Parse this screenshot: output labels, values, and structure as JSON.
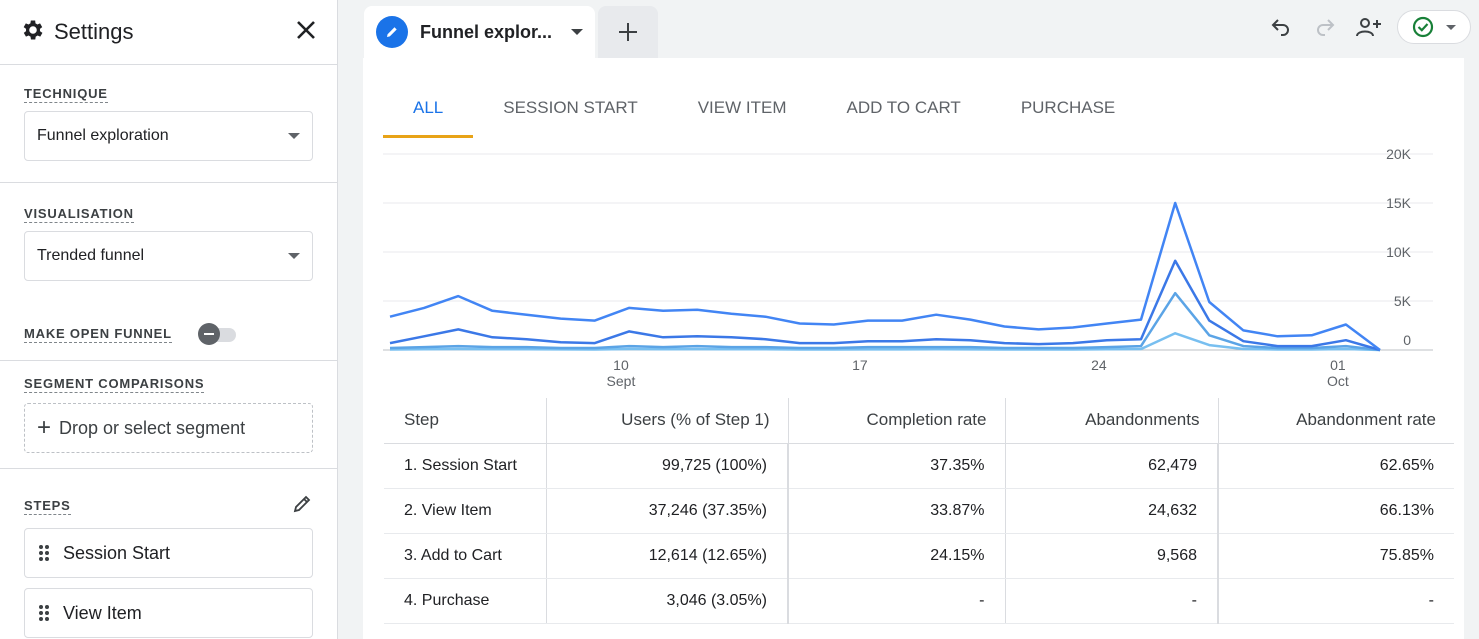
{
  "sidebar": {
    "title": "Settings",
    "technique": {
      "label": "TECHNIQUE",
      "value": "Funnel exploration"
    },
    "visualisation": {
      "label": "VISUALISATION",
      "value": "Trended funnel"
    },
    "open_funnel": {
      "label": "MAKE OPEN FUNNEL",
      "enabled": false
    },
    "segments": {
      "label": "SEGMENT COMPARISONS",
      "placeholder": "Drop or select segment"
    },
    "steps": {
      "label": "STEPS",
      "items": [
        "Session Start",
        "View Item"
      ]
    }
  },
  "header": {
    "tab_name": "Funnel explor...",
    "accent": "#1a73e8",
    "status_color": "#188038"
  },
  "chart_tabs": [
    "ALL",
    "SESSION START",
    "VIEW ITEM",
    "ADD TO CART",
    "PURCHASE"
  ],
  "chart_data": {
    "type": "line",
    "ylim": [
      0,
      20000
    ],
    "yticks": [
      "20K",
      "15K",
      "10K",
      "5K",
      "0"
    ],
    "xticks": [
      {
        "label": "10",
        "sub": "Sept"
      },
      {
        "label": "17",
        "sub": ""
      },
      {
        "label": "24",
        "sub": ""
      },
      {
        "label": "01",
        "sub": "Oct"
      }
    ],
    "series": [
      {
        "color": "#4285f4",
        "values": [
          3400,
          4300,
          5500,
          4000,
          3600,
          3200,
          3000,
          4300,
          4000,
          4100,
          3700,
          3400,
          2700,
          2600,
          3000,
          3000,
          3600,
          3100,
          2400,
          2100,
          2300,
          2700,
          3100,
          15000,
          4900,
          2000,
          1400,
          1500,
          2600,
          0
        ]
      },
      {
        "color": "#3b78e7",
        "values": [
          700,
          1400,
          2100,
          1300,
          1100,
          800,
          700,
          1900,
          1300,
          1400,
          1300,
          1100,
          700,
          700,
          900,
          900,
          1100,
          1000,
          700,
          600,
          700,
          1000,
          1100,
          9100,
          3000,
          900,
          400,
          400,
          1000,
          0
        ]
      },
      {
        "color": "#5ba4e6",
        "values": [
          200,
          300,
          400,
          300,
          300,
          200,
          200,
          400,
          300,
          400,
          300,
          300,
          200,
          200,
          300,
          300,
          300,
          300,
          200,
          200,
          200,
          300,
          400,
          5800,
          1500,
          400,
          200,
          200,
          400,
          0
        ]
      },
      {
        "color": "#78bff0",
        "values": [
          50,
          80,
          100,
          80,
          80,
          60,
          50,
          100,
          80,
          90,
          80,
          70,
          50,
          50,
          60,
          60,
          70,
          60,
          50,
          50,
          50,
          70,
          100,
          1700,
          500,
          100,
          50,
          50,
          100,
          0
        ]
      }
    ]
  },
  "table": {
    "headers": [
      "Step",
      "Users (% of Step 1)",
      "Completion rate",
      "Abandonments",
      "Abandonment rate"
    ],
    "rows": [
      [
        "1. Session Start",
        "99,725 (100%)",
        "37.35%",
        "62,479",
        "62.65%"
      ],
      [
        "2. View Item",
        "37,246 (37.35%)",
        "33.87%",
        "24,632",
        "66.13%"
      ],
      [
        "3. Add to Cart",
        "12,614 (12.65%)",
        "24.15%",
        "9,568",
        "75.85%"
      ],
      [
        "4. Purchase",
        "3,046 (3.05%)",
        "-",
        "-",
        "-"
      ]
    ]
  }
}
